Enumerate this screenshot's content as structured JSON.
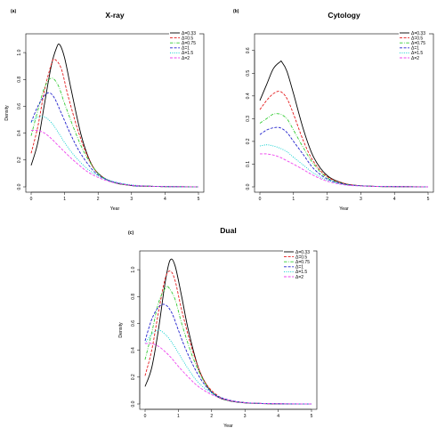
{
  "chart_data": [
    {
      "type": "line",
      "panel_tag": "(a)",
      "title": "X-ray",
      "xlabel": "Year",
      "ylabel": "Density",
      "xlim": [
        0,
        5
      ],
      "ylim": [
        0,
        1.1
      ],
      "xticks": [
        0,
        1,
        2,
        3,
        4,
        5
      ],
      "yticks": [
        0.0,
        0.2,
        0.4,
        0.6,
        0.8,
        1.0
      ],
      "legend_position": "top-right",
      "grid": false,
      "series": [
        {
          "name": "Δ=0.33",
          "color": "#000000",
          "dash": "solid",
          "x": [
            0,
            0.2,
            0.4,
            0.6,
            0.75,
            0.85,
            1.0,
            1.2,
            1.5,
            1.8,
            2.1,
            2.5,
            3.0,
            3.5,
            4.0,
            5.0
          ],
          "y": [
            0.16,
            0.33,
            0.62,
            0.9,
            1.03,
            1.06,
            0.96,
            0.72,
            0.38,
            0.17,
            0.08,
            0.03,
            0.01,
            0.005,
            0.002,
            0.0
          ]
        },
        {
          "name": "Δ=0.5",
          "color": "#e41a1c",
          "dash": "dashed",
          "x": [
            0,
            0.2,
            0.4,
            0.6,
            0.7,
            0.9,
            1.1,
            1.4,
            1.7,
            2.0,
            2.4,
            3.0,
            3.5,
            4.0,
            5.0
          ],
          "y": [
            0.25,
            0.45,
            0.72,
            0.91,
            0.95,
            0.88,
            0.68,
            0.42,
            0.22,
            0.1,
            0.04,
            0.01,
            0.005,
            0.002,
            0.0
          ]
        },
        {
          "name": "Δ=0.75",
          "color": "#33cc33",
          "dash": "dash-dot",
          "x": [
            0,
            0.2,
            0.4,
            0.6,
            0.8,
            1.0,
            1.3,
            1.6,
            2.0,
            2.4,
            3.0,
            3.5,
            4.0,
            5.0
          ],
          "y": [
            0.38,
            0.57,
            0.74,
            0.81,
            0.76,
            0.62,
            0.42,
            0.25,
            0.1,
            0.04,
            0.01,
            0.005,
            0.002,
            0.0
          ]
        },
        {
          "name": "Δ=1",
          "color": "#2020cc",
          "dash": "dashed",
          "x": [
            0,
            0.2,
            0.4,
            0.55,
            0.7,
            0.9,
            1.2,
            1.5,
            1.9,
            2.3,
            3.0,
            3.5,
            4.0,
            5.0
          ],
          "y": [
            0.48,
            0.6,
            0.68,
            0.7,
            0.66,
            0.55,
            0.38,
            0.24,
            0.11,
            0.05,
            0.01,
            0.005,
            0.002,
            0.0
          ]
        },
        {
          "name": "Δ=1.5",
          "color": "#00cccc",
          "dash": "dotted",
          "x": [
            0,
            0.2,
            0.4,
            0.6,
            0.8,
            1.0,
            1.3,
            1.7,
            2.1,
            2.5,
            3.0,
            3.5,
            4.0,
            5.0
          ],
          "y": [
            0.48,
            0.52,
            0.52,
            0.48,
            0.41,
            0.33,
            0.23,
            0.13,
            0.07,
            0.035,
            0.015,
            0.006,
            0.002,
            0.0
          ]
        },
        {
          "name": "Δ=2",
          "color": "#ee44ee",
          "dash": "dashed",
          "x": [
            0,
            0.2,
            0.4,
            0.6,
            0.8,
            1.0,
            1.3,
            1.7,
            2.1,
            2.5,
            3.0,
            3.5,
            4.0,
            5.0
          ],
          "y": [
            0.42,
            0.42,
            0.4,
            0.36,
            0.31,
            0.26,
            0.19,
            0.11,
            0.06,
            0.03,
            0.012,
            0.005,
            0.002,
            0.0
          ]
        }
      ]
    },
    {
      "type": "line",
      "panel_tag": "(b)",
      "title": "Cytology",
      "xlabel": "Year",
      "ylabel": "",
      "xlim": [
        0,
        5
      ],
      "ylim": [
        0,
        0.65
      ],
      "xticks": [
        0,
        1,
        2,
        3,
        4,
        5
      ],
      "yticks": [
        0.0,
        0.1,
        0.2,
        0.3,
        0.4,
        0.5,
        0.6
      ],
      "legend_position": "top-right",
      "grid": false,
      "series": [
        {
          "name": "Δ=0.33",
          "color": "#000000",
          "dash": "solid",
          "x": [
            0,
            0.2,
            0.4,
            0.6,
            0.65,
            0.8,
            1.0,
            1.3,
            1.6,
            2.0,
            2.5,
            3.0,
            3.5,
            4.0,
            5.0
          ],
          "y": [
            0.38,
            0.45,
            0.52,
            0.55,
            0.55,
            0.51,
            0.41,
            0.25,
            0.13,
            0.05,
            0.015,
            0.005,
            0.002,
            0.001,
            0.0
          ]
        },
        {
          "name": "Δ=0.5",
          "color": "#e41a1c",
          "dash": "dashed",
          "x": [
            0,
            0.2,
            0.4,
            0.6,
            0.8,
            1.0,
            1.3,
            1.6,
            2.0,
            2.5,
            3.0,
            3.5,
            4.0,
            5.0
          ],
          "y": [
            0.34,
            0.38,
            0.41,
            0.42,
            0.39,
            0.32,
            0.2,
            0.11,
            0.045,
            0.015,
            0.005,
            0.002,
            0.001,
            0.0
          ]
        },
        {
          "name": "Δ=0.75",
          "color": "#33cc33",
          "dash": "dash-dot",
          "x": [
            0,
            0.2,
            0.4,
            0.6,
            0.8,
            1.0,
            1.3,
            1.6,
            2.0,
            2.5,
            3.0,
            3.5,
            4.0,
            5.0
          ],
          "y": [
            0.28,
            0.3,
            0.32,
            0.32,
            0.3,
            0.25,
            0.17,
            0.1,
            0.04,
            0.013,
            0.005,
            0.002,
            0.001,
            0.0
          ]
        },
        {
          "name": "Δ=1",
          "color": "#2020cc",
          "dash": "dashed",
          "x": [
            0,
            0.2,
            0.4,
            0.6,
            0.8,
            1.0,
            1.3,
            1.6,
            2.0,
            2.5,
            3.0,
            3.5,
            4.0,
            5.0
          ],
          "y": [
            0.23,
            0.25,
            0.26,
            0.26,
            0.24,
            0.2,
            0.14,
            0.08,
            0.035,
            0.012,
            0.005,
            0.002,
            0.001,
            0.0
          ]
        },
        {
          "name": "Δ=1.5",
          "color": "#00cccc",
          "dash": "dotted",
          "x": [
            0,
            0.2,
            0.4,
            0.6,
            0.8,
            1.0,
            1.3,
            1.6,
            2.0,
            2.5,
            3.0,
            3.5,
            4.0,
            5.0
          ],
          "y": [
            0.18,
            0.185,
            0.18,
            0.17,
            0.155,
            0.13,
            0.095,
            0.06,
            0.03,
            0.01,
            0.004,
            0.002,
            0.001,
            0.0
          ]
        },
        {
          "name": "Δ=2",
          "color": "#ee44ee",
          "dash": "dashed",
          "x": [
            0,
            0.2,
            0.4,
            0.6,
            0.8,
            1.0,
            1.3,
            1.6,
            2.0,
            2.5,
            3.0,
            3.5,
            4.0,
            5.0
          ],
          "y": [
            0.145,
            0.145,
            0.14,
            0.13,
            0.115,
            0.1,
            0.075,
            0.05,
            0.025,
            0.009,
            0.004,
            0.002,
            0.001,
            0.0
          ]
        }
      ]
    },
    {
      "type": "line",
      "panel_tag": "(c)",
      "title": "Dual",
      "xlabel": "Year",
      "ylabel": "Density",
      "xlim": [
        0,
        5
      ],
      "ylim": [
        0,
        1.1
      ],
      "xticks": [
        0,
        1,
        2,
        3,
        4,
        5
      ],
      "yticks": [
        0.0,
        0.2,
        0.4,
        0.6,
        0.8,
        1.0
      ],
      "legend_position": "top-right",
      "grid": false,
      "series": [
        {
          "name": "Δ=0.33",
          "color": "#000000",
          "dash": "solid",
          "x": [
            0,
            0.2,
            0.4,
            0.6,
            0.75,
            0.9,
            1.1,
            1.3,
            1.6,
            1.9,
            2.2,
            2.6,
            3.0,
            3.5,
            4.0,
            5.0
          ],
          "y": [
            0.13,
            0.27,
            0.55,
            0.9,
            1.07,
            1.03,
            0.8,
            0.55,
            0.27,
            0.12,
            0.05,
            0.02,
            0.008,
            0.003,
            0.001,
            0.0
          ]
        },
        {
          "name": "Δ=0.5",
          "color": "#e41a1c",
          "dash": "dashed",
          "x": [
            0,
            0.2,
            0.4,
            0.6,
            0.75,
            0.9,
            1.1,
            1.4,
            1.7,
            2.0,
            2.4,
            3.0,
            3.5,
            4.0,
            5.0
          ],
          "y": [
            0.21,
            0.4,
            0.68,
            0.93,
            0.99,
            0.92,
            0.7,
            0.42,
            0.21,
            0.1,
            0.035,
            0.01,
            0.004,
            0.001,
            0.0
          ]
        },
        {
          "name": "Δ=0.75",
          "color": "#33cc33",
          "dash": "dash-dot",
          "x": [
            0,
            0.2,
            0.4,
            0.6,
            0.7,
            0.9,
            1.1,
            1.4,
            1.7,
            2.0,
            2.4,
            3.0,
            3.5,
            4.0,
            5.0
          ],
          "y": [
            0.33,
            0.53,
            0.75,
            0.86,
            0.87,
            0.78,
            0.6,
            0.37,
            0.2,
            0.09,
            0.035,
            0.01,
            0.004,
            0.001,
            0.0
          ]
        },
        {
          "name": "Δ=1",
          "color": "#2020cc",
          "dash": "dashed",
          "x": [
            0,
            0.2,
            0.4,
            0.6,
            0.8,
            1.0,
            1.2,
            1.5,
            1.8,
            2.1,
            2.5,
            3.0,
            3.5,
            4.0,
            5.0
          ],
          "y": [
            0.47,
            0.63,
            0.72,
            0.74,
            0.68,
            0.55,
            0.42,
            0.26,
            0.14,
            0.07,
            0.03,
            0.01,
            0.004,
            0.001,
            0.0
          ]
        },
        {
          "name": "Δ=1.5",
          "color": "#00cccc",
          "dash": "dotted",
          "x": [
            0,
            0.2,
            0.4,
            0.6,
            0.8,
            1.0,
            1.3,
            1.6,
            2.0,
            2.4,
            2.8,
            3.3,
            4.0,
            5.0
          ],
          "y": [
            0.45,
            0.52,
            0.55,
            0.52,
            0.46,
            0.38,
            0.26,
            0.16,
            0.08,
            0.035,
            0.015,
            0.006,
            0.002,
            0.0
          ]
        },
        {
          "name": "Δ=2",
          "color": "#ee44ee",
          "dash": "dashed",
          "x": [
            0,
            0.2,
            0.4,
            0.6,
            0.8,
            1.0,
            1.3,
            1.6,
            2.0,
            2.4,
            2.8,
            3.3,
            4.0,
            5.0
          ],
          "y": [
            0.45,
            0.45,
            0.43,
            0.39,
            0.34,
            0.28,
            0.2,
            0.13,
            0.07,
            0.035,
            0.015,
            0.006,
            0.002,
            0.0
          ]
        }
      ]
    }
  ]
}
